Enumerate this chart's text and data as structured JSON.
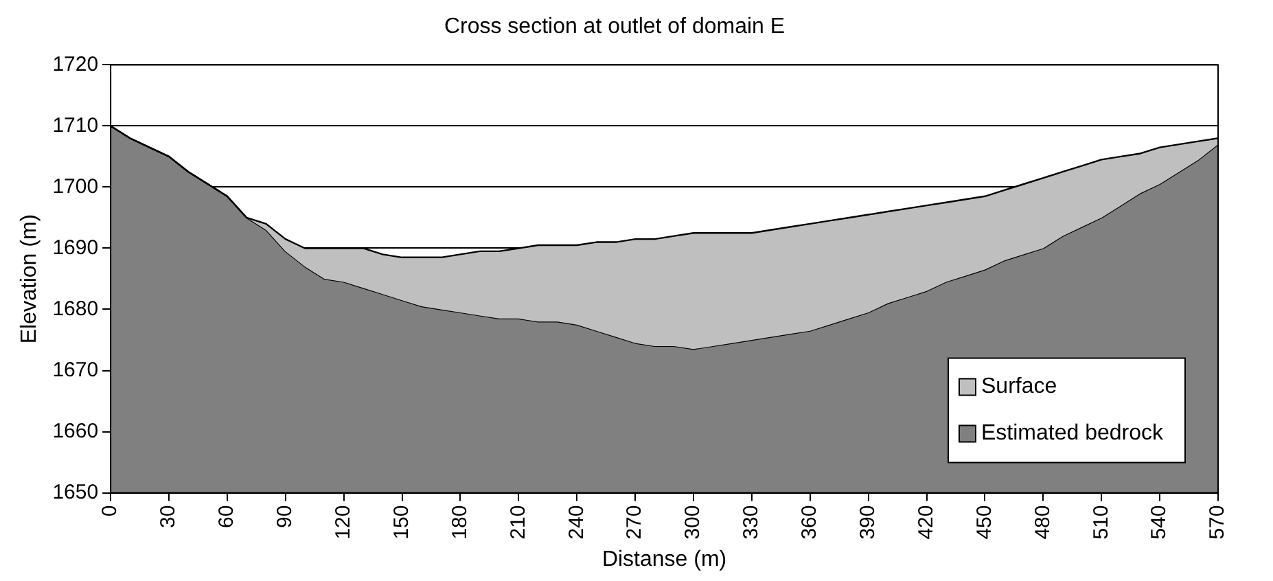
{
  "chart_data": {
    "type": "area",
    "title": "Cross section at outlet of domain E",
    "xlabel": "Distanse (m)",
    "ylabel": "Elevation (m)",
    "x": [
      0,
      10,
      20,
      30,
      40,
      50,
      60,
      70,
      80,
      90,
      100,
      110,
      120,
      130,
      140,
      150,
      160,
      170,
      180,
      190,
      200,
      210,
      220,
      230,
      240,
      250,
      260,
      270,
      280,
      290,
      300,
      310,
      320,
      330,
      340,
      350,
      360,
      370,
      380,
      390,
      400,
      410,
      420,
      430,
      440,
      450,
      460,
      470,
      480,
      490,
      500,
      510,
      520,
      530,
      540,
      550,
      560,
      570
    ],
    "series": [
      {
        "name": "Surface",
        "color": "#bfbfbf",
        "values": [
          1710,
          1708,
          1706.5,
          1705,
          1702.5,
          1700.5,
          1698.5,
          1695,
          1694,
          1691.5,
          1690,
          1690,
          1690,
          1690,
          1689,
          1688.5,
          1688.5,
          1688.5,
          1689,
          1689.5,
          1689.5,
          1690,
          1690.5,
          1690.5,
          1690.5,
          1691,
          1691,
          1691.5,
          1691.5,
          1692,
          1692.5,
          1692.5,
          1692.5,
          1692.5,
          1693,
          1693.5,
          1694,
          1694.5,
          1695,
          1695.5,
          1696,
          1696.5,
          1697,
          1697.5,
          1698,
          1698.5,
          1699.5,
          1700.5,
          1701.5,
          1702.5,
          1703.5,
          1704.5,
          1705,
          1705.5,
          1706.5,
          1707,
          1707.5,
          1708
        ]
      },
      {
        "name": "Estimated bedrock",
        "color": "#808080",
        "values": [
          1710,
          1708,
          1706.5,
          1705,
          1702.5,
          1700.5,
          1698.5,
          1695,
          1693,
          1689.5,
          1687,
          1685,
          1684.5,
          1683.5,
          1682.5,
          1681.5,
          1680.5,
          1680,
          1679.5,
          1679,
          1678.5,
          1678.5,
          1678,
          1678,
          1677.5,
          1676.5,
          1675.5,
          1674.5,
          1674,
          1674,
          1673.5,
          1674,
          1674.5,
          1675,
          1675.5,
          1676,
          1676.5,
          1677.5,
          1678.5,
          1679.5,
          1681,
          1682,
          1683,
          1684.5,
          1685.5,
          1686.5,
          1688,
          1689,
          1690,
          1692,
          1693.5,
          1695,
          1697,
          1699,
          1700.5,
          1702.5,
          1704.5,
          1707
        ]
      }
    ],
    "xlim": [
      0,
      570
    ],
    "xticks": [
      0,
      30,
      60,
      90,
      120,
      150,
      180,
      210,
      240,
      270,
      300,
      330,
      360,
      390,
      420,
      450,
      480,
      510,
      540,
      570
    ],
    "ylim": [
      1650,
      1720
    ],
    "yticks": [
      1650,
      1660,
      1670,
      1680,
      1690,
      1700,
      1710,
      1720
    ],
    "grid": "y",
    "legend": "bottom right"
  }
}
